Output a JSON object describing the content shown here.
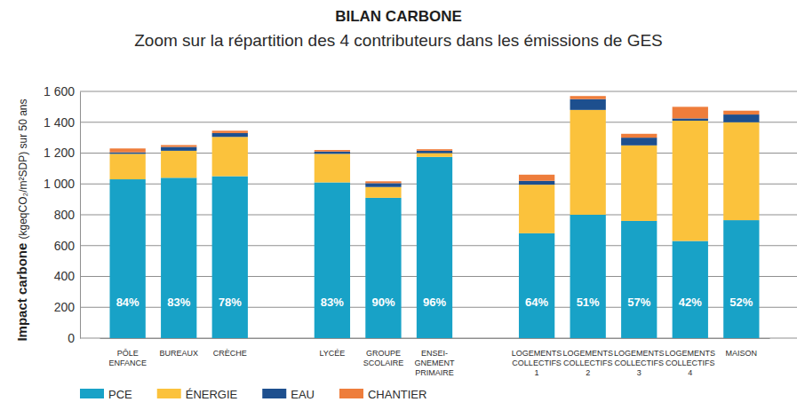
{
  "chart_data": {
    "type": "bar",
    "title": "BILAN CARBONE",
    "subtitle": "Zoom sur la répartition des 4 contributeurs dans les émissions de GES",
    "y_label": "Impact carbone (kgeqCO₂/m²SDP) sur 50 ans",
    "categories": [
      "PÔLE\nENFANCE",
      "BUREAUX",
      "CRÈCHE",
      null,
      "LYCÉE",
      "GROUPE\nSCOLAIRE",
      "ENSEI-\nGNEMENT\nPRIMAIRE",
      null,
      "LOGEMENTS\nCOLLECTIFS\n1",
      "LOGEMENTS\nCOLLECTIFS\n2",
      "LOGEMENTS\nCOLLECTIFS\n3",
      "LOGEMENTS\nCOLLECTIFS\n4",
      "MAISON"
    ],
    "series": [
      {
        "name": "PCE",
        "color": "#18a2c7",
        "values": [
          1030,
          1040,
          1050,
          null,
          1010,
          910,
          1175,
          null,
          680,
          800,
          760,
          630,
          765
        ]
      },
      {
        "name": "ÉNERGIE",
        "color": "#fbc23c",
        "values": [
          165,
          175,
          255,
          null,
          185,
          70,
          25,
          null,
          315,
          680,
          490,
          780,
          635
        ]
      },
      {
        "name": "EAU",
        "color": "#1d4f8e",
        "values": [
          10,
          25,
          25,
          null,
          15,
          25,
          15,
          null,
          25,
          70,
          50,
          15,
          50
        ]
      },
      {
        "name": "CHANTIER",
        "color": "#ee7d3b",
        "values": [
          25,
          12,
          15,
          null,
          10,
          12,
          10,
          null,
          40,
          20,
          25,
          75,
          25
        ]
      }
    ],
    "annotations": {
      "values": [
        84,
        83,
        78,
        null,
        83,
        90,
        96,
        null,
        64,
        51,
        57,
        42,
        52
      ],
      "value_labels": [
        "84%",
        "83%",
        "78%",
        null,
        "83%",
        "90%",
        "96%",
        null,
        "64%",
        "51%",
        "57%",
        "42%",
        "52%"
      ]
    },
    "stacked": true,
    "ylim": [
      0,
      1600
    ],
    "yticks": [
      0,
      200,
      400,
      600,
      800,
      {
        "value": 1000,
        "label": "1 000"
      },
      {
        "value": 1200,
        "label": "1 200"
      },
      {
        "value": 1400,
        "label": "1 400"
      },
      {
        "value": 1600,
        "label": "1 600"
      }
    ],
    "grid": true,
    "legend": "bottom"
  }
}
